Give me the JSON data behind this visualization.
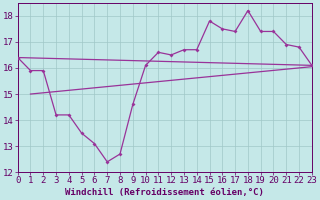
{
  "xlabel": "Windchill (Refroidissement éolien,°C)",
  "bg_color": "#c5e8e8",
  "line_color": "#993399",
  "grid_color": "#a0c8c8",
  "axis_color": "#660066",
  "text_color": "#660066",
  "xlim": [
    0,
    23
  ],
  "ylim": [
    12,
    18.5
  ],
  "yticks": [
    12,
    13,
    14,
    15,
    16,
    17,
    18
  ],
  "xticks": [
    0,
    1,
    2,
    3,
    4,
    5,
    6,
    7,
    8,
    9,
    10,
    11,
    12,
    13,
    14,
    15,
    16,
    17,
    18,
    19,
    20,
    21,
    22,
    23
  ],
  "zigzag_x": [
    0,
    1,
    2,
    3,
    4,
    5,
    6,
    7,
    8,
    9,
    10,
    11,
    12,
    13,
    14,
    15,
    16,
    17,
    18,
    19,
    20,
    21,
    22,
    23
  ],
  "zigzag_y": [
    16.4,
    15.9,
    15.9,
    14.2,
    14.2,
    13.5,
    13.1,
    12.4,
    12.7,
    14.6,
    16.1,
    16.6,
    16.5,
    16.7,
    16.7,
    17.8,
    17.5,
    17.4,
    18.2,
    17.4,
    17.4,
    16.9,
    16.8,
    16.1
  ],
  "upper_line_x": [
    0,
    23
  ],
  "upper_line_y": [
    16.4,
    16.1
  ],
  "lower_line_x": [
    1,
    23
  ],
  "lower_line_y": [
    15.0,
    16.05
  ],
  "font_size": 6.5
}
